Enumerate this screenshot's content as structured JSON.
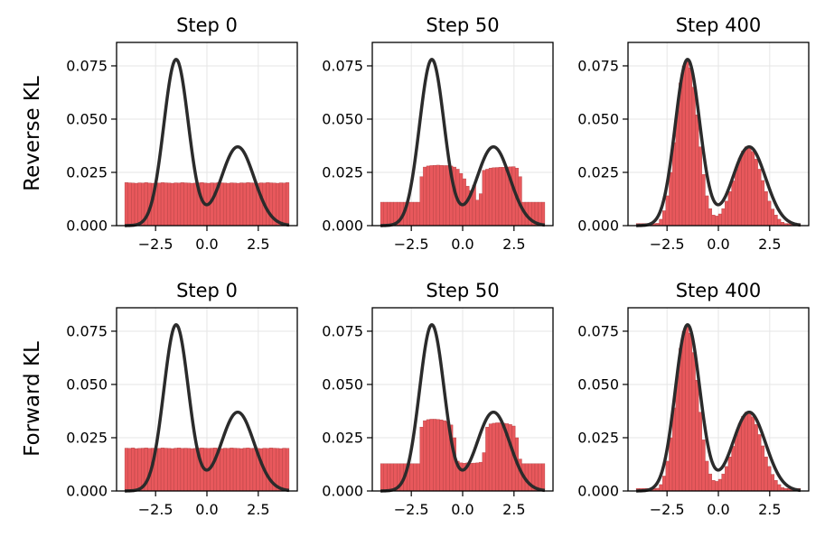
{
  "row_labels": [
    "Reverse KL",
    "Forward KL"
  ],
  "chart_data": {
    "type": "histogram-grid",
    "description_rows": [
      "Reverse KL",
      "Forward KL"
    ],
    "panel_titles": [
      "Step 0",
      "Step 50",
      "Step 400"
    ],
    "xlim": [
      -4.4,
      4.4
    ],
    "ylim": [
      0,
      0.086
    ],
    "xticks": [
      -2.5,
      0.0,
      2.5
    ],
    "xtick_labels": [
      "−2.5",
      "0.0",
      "2.5"
    ],
    "yticks": [
      0.0,
      0.025,
      0.05,
      0.075
    ],
    "ytick_labels": [
      "0.000",
      "0.025",
      "0.050",
      "0.075"
    ],
    "grid": true,
    "bar_color": "#e8585c",
    "bar_edge": "#b04042",
    "curve_color": "#2b2b2b",
    "target_curve": {
      "components": [
        {
          "weight": 0.6,
          "mean": -1.5,
          "std": 0.6
        },
        {
          "weight": 0.4,
          "mean": 1.5,
          "std": 0.8
        }
      ],
      "peak_values": [
        0.078,
        0.037
      ],
      "x_range": [
        -4.0,
        4.0
      ]
    },
    "histograms": [
      {
        "row": "Reverse KL",
        "title": "Step 0",
        "bins": 50,
        "x_range": [
          -4.0,
          4.0
        ],
        "values": [
          0.0202,
          0.0201,
          0.02,
          0.0199,
          0.0201,
          0.02,
          0.0202,
          0.02,
          0.0199,
          0.0201,
          0.02,
          0.0202,
          0.0201,
          0.02,
          0.0199,
          0.0201,
          0.02,
          0.0202,
          0.0201,
          0.02,
          0.0199,
          0.02,
          0.0201,
          0.0202,
          0.02,
          0.0199,
          0.0201,
          0.02,
          0.0202,
          0.0201,
          0.02,
          0.0199,
          0.0201,
          0.02,
          0.0199,
          0.0201,
          0.02,
          0.0202,
          0.0201,
          0.02,
          0.0199,
          0.0201,
          0.02,
          0.0202,
          0.0201,
          0.02,
          0.0199,
          0.0201,
          0.02,
          0.0202
        ]
      },
      {
        "row": "Reverse KL",
        "title": "Step 50",
        "bins": 50,
        "x_range": [
          -4.0,
          4.0
        ],
        "values": [
          0.011,
          0.011,
          0.011,
          0.011,
          0.011,
          0.011,
          0.011,
          0.011,
          0.011,
          0.011,
          0.011,
          0.011,
          0.023,
          0.0275,
          0.028,
          0.0282,
          0.0283,
          0.0284,
          0.0283,
          0.0282,
          0.0282,
          0.028,
          0.0275,
          0.0265,
          0.0245,
          0.022,
          0.0185,
          0.0165,
          0.019,
          0.012,
          0.015,
          0.026,
          0.0265,
          0.027,
          0.0272,
          0.0273,
          0.0274,
          0.0274,
          0.0275,
          0.0276,
          0.0277,
          0.027,
          0.023,
          0.011,
          0.011,
          0.011,
          0.011,
          0.011,
          0.011,
          0.011
        ]
      },
      {
        "row": "Reverse KL",
        "title": "Step 400",
        "bins": 50,
        "x_range": [
          -4.0,
          4.0
        ],
        "values": [
          0.001,
          0.001,
          0.001,
          0.001,
          0.001,
          0.001,
          0.0011,
          0.003,
          0.007,
          0.014,
          0.025,
          0.039,
          0.054,
          0.067,
          0.075,
          0.078,
          0.074,
          0.065,
          0.052,
          0.037,
          0.024,
          0.014,
          0.008,
          0.005,
          0.0045,
          0.0055,
          0.008,
          0.0115,
          0.016,
          0.021,
          0.0265,
          0.0315,
          0.035,
          0.037,
          0.0368,
          0.0348,
          0.0312,
          0.0265,
          0.0212,
          0.016,
          0.0115,
          0.0078,
          0.005,
          0.003,
          0.0016,
          0.001,
          0.001,
          0.001,
          0.001,
          0.001
        ]
      },
      {
        "row": "Forward KL",
        "title": "Step 0",
        "bins": 50,
        "x_range": [
          -4.0,
          4.0
        ],
        "values": [
          0.0201,
          0.02,
          0.0202,
          0.0199,
          0.02,
          0.0201,
          0.0202,
          0.02,
          0.0201,
          0.0199,
          0.02,
          0.0202,
          0.0201,
          0.02,
          0.0199,
          0.0201,
          0.0202,
          0.02,
          0.0201,
          0.02,
          0.0199,
          0.02,
          0.0201,
          0.0202,
          0.0201,
          0.02,
          0.0201,
          0.0202,
          0.02,
          0.0199,
          0.0201,
          0.02,
          0.0202,
          0.0201,
          0.02,
          0.0199,
          0.0201,
          0.0202,
          0.02,
          0.0201,
          0.02,
          0.0199,
          0.0201,
          0.02,
          0.0202,
          0.0201,
          0.02,
          0.0199,
          0.0201,
          0.02
        ]
      },
      {
        "row": "Forward KL",
        "title": "Step 50",
        "bins": 50,
        "x_range": [
          -4.0,
          4.0
        ],
        "values": [
          0.0128,
          0.0128,
          0.0128,
          0.0128,
          0.0128,
          0.0128,
          0.0128,
          0.0128,
          0.0128,
          0.0128,
          0.0128,
          0.0128,
          0.03,
          0.033,
          0.0335,
          0.0337,
          0.0337,
          0.0336,
          0.0334,
          0.033,
          0.0325,
          0.031,
          0.025,
          0.014,
          0.0132,
          0.013,
          0.0132,
          0.013,
          0.0131,
          0.0132,
          0.0135,
          0.018,
          0.03,
          0.0315,
          0.0318,
          0.032,
          0.032,
          0.0318,
          0.0316,
          0.0312,
          0.0305,
          0.025,
          0.015,
          0.0128,
          0.0128,
          0.0128,
          0.0128,
          0.0128,
          0.0128,
          0.0128
        ]
      },
      {
        "row": "Forward KL",
        "title": "Step 400",
        "bins": 50,
        "x_range": [
          -4.0,
          4.0
        ],
        "values": [
          0.0012,
          0.0012,
          0.0012,
          0.0012,
          0.0012,
          0.0012,
          0.0013,
          0.003,
          0.007,
          0.014,
          0.025,
          0.039,
          0.054,
          0.067,
          0.075,
          0.078,
          0.074,
          0.065,
          0.052,
          0.037,
          0.024,
          0.014,
          0.008,
          0.005,
          0.0045,
          0.0055,
          0.008,
          0.0115,
          0.016,
          0.021,
          0.0265,
          0.0315,
          0.035,
          0.037,
          0.0368,
          0.0348,
          0.0312,
          0.0265,
          0.0212,
          0.016,
          0.0115,
          0.0078,
          0.005,
          0.003,
          0.0016,
          0.0012,
          0.0012,
          0.0012,
          0.0012,
          0.0012
        ]
      }
    ]
  }
}
